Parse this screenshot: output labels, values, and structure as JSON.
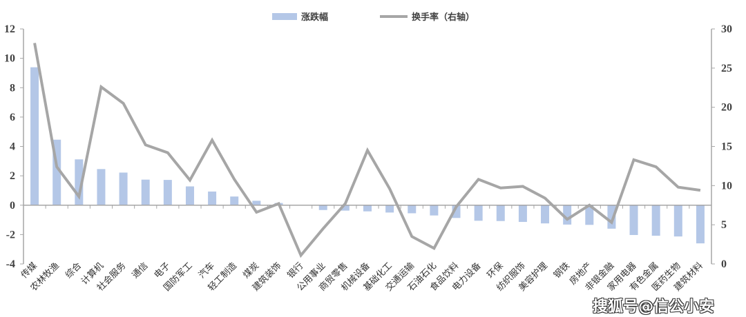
{
  "chart_data": {
    "type": "bar+line",
    "categories": [
      "传媒",
      "农林牧渔",
      "综合",
      "计算机",
      "社会服务",
      "通信",
      "电子",
      "国防军工",
      "汽车",
      "轻工制造",
      "煤炭",
      "建筑装饰",
      "银行",
      "公用事业",
      "商贸零售",
      "机械设备",
      "基础化工",
      "交通运输",
      "石油石化",
      "食品饮料",
      "电力设备",
      "环保",
      "纺织服饰",
      "美容护理",
      "钢铁",
      "房地产",
      "非银金融",
      "家用电器",
      "有色金属",
      "医药生物",
      "建筑材料"
    ],
    "series": [
      {
        "name": "涨跌幅",
        "type": "bar",
        "axis": "left",
        "color": "#b4c7e7",
        "values": [
          9.39,
          4.46,
          3.12,
          2.46,
          2.22,
          1.74,
          1.72,
          1.28,
          0.93,
          0.59,
          0.3,
          0.15,
          0.0,
          -0.33,
          -0.37,
          -0.42,
          -0.5,
          -0.55,
          -0.7,
          -0.87,
          -1.06,
          -1.08,
          -1.14,
          -1.24,
          -1.32,
          -1.34,
          -1.6,
          -2.03,
          -2.08,
          -2.13,
          -2.6
        ]
      },
      {
        "name": "换手率（右轴）",
        "type": "line",
        "axis": "right",
        "color": "#a6a6a6",
        "values": [
          28.2,
          12.4,
          8.6,
          22.6,
          20.5,
          15.2,
          14.2,
          10.7,
          15.8,
          10.8,
          6.6,
          7.7,
          1.1,
          4.5,
          7.7,
          14.5,
          9.6,
          3.5,
          2.0,
          7.3,
          10.8,
          9.7,
          9.9,
          8.4,
          5.7,
          7.5,
          5.3,
          13.3,
          12.4,
          9.8,
          9.4
        ]
      }
    ],
    "y_left": {
      "range": [
        -4,
        12
      ],
      "ticks": [
        "-4",
        "-2",
        "0",
        "2",
        "4",
        "6",
        "8",
        "10",
        "12"
      ]
    },
    "y_right": {
      "range": [
        0,
        30
      ],
      "ticks": [
        "0",
        "5",
        "10",
        "15",
        "20",
        "25",
        "30"
      ]
    },
    "legend": {
      "placement": "top-center",
      "items": [
        "涨跌幅",
        "换手率（右轴）"
      ]
    },
    "grid": false
  },
  "watermark": "搜狐号@信公小安"
}
